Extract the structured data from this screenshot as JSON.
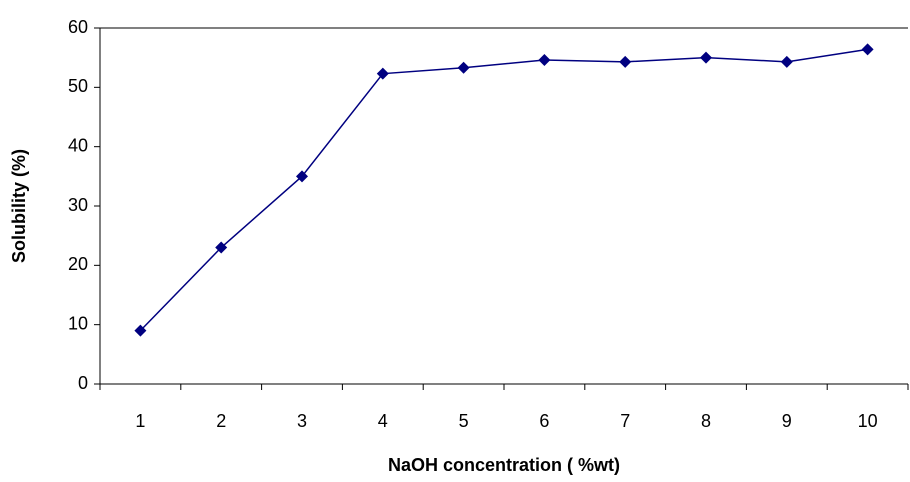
{
  "chart_data": {
    "type": "line",
    "x_label": "NaOH concentration  ( %wt)",
    "y_label": "Solubility (%)",
    "categories": [
      "1",
      "2",
      "3",
      "4",
      "5",
      "6",
      "7",
      "8",
      "9",
      "10"
    ],
    "values": [
      9,
      23,
      35,
      52.3,
      53.3,
      54.6,
      54.3,
      55,
      54.3,
      56.4
    ],
    "color": "#000080",
    "ylim": [
      0,
      60
    ],
    "yticks": [
      0,
      10,
      20,
      30,
      40,
      50,
      60
    ]
  }
}
